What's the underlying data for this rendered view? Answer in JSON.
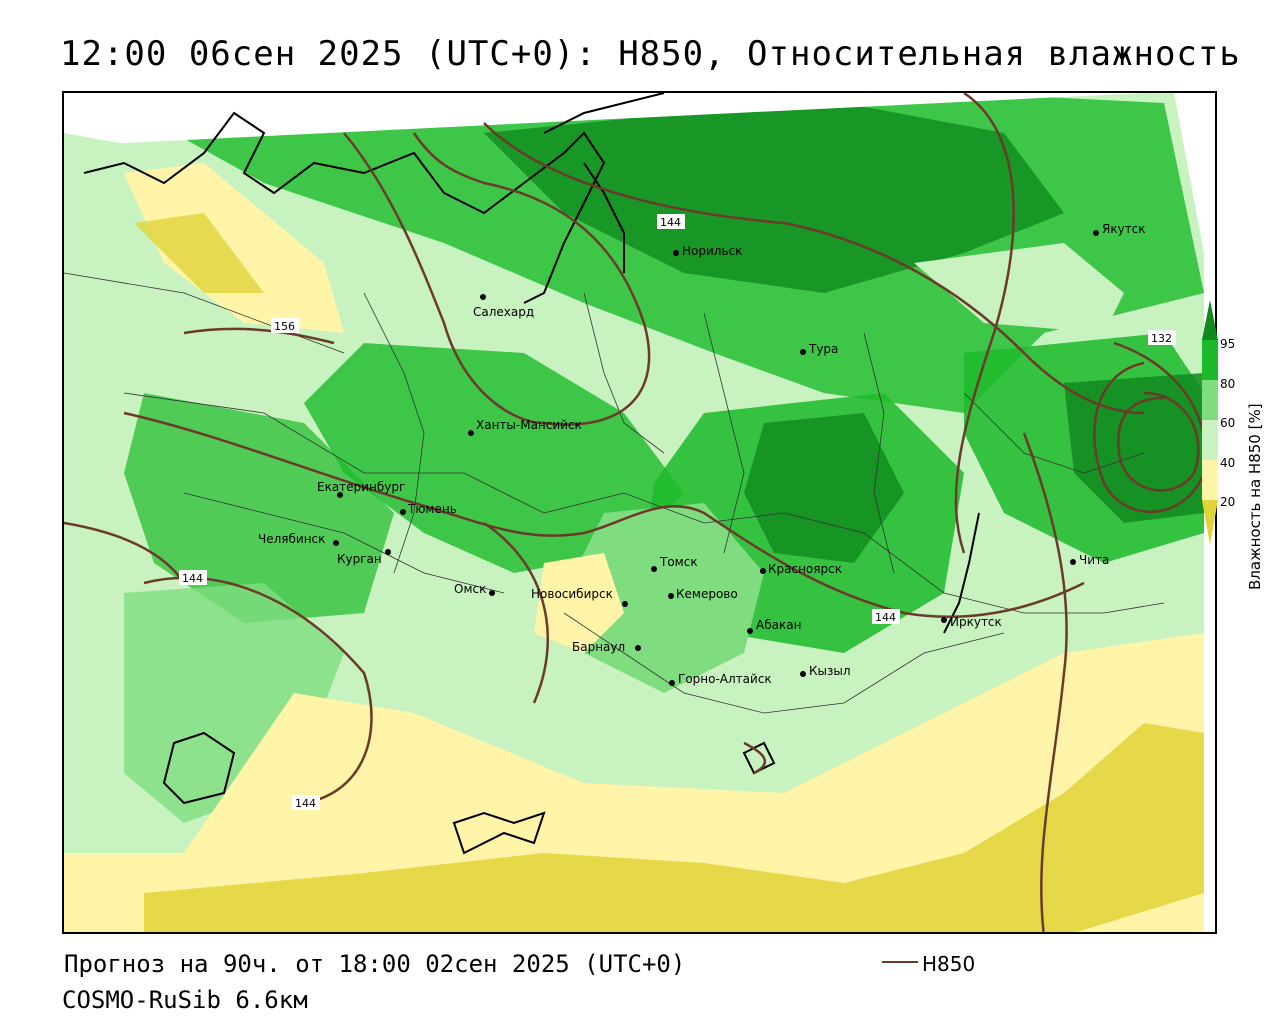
{
  "title": "12:00 06сен 2025 (UTC+0): H850, Относительная влажность",
  "footer": {
    "forecast": "Прогноз на 90ч. от 18:00 02сен 2025 (UTC+0)",
    "model": "COSMO-RuSib 6.6км"
  },
  "legend": {
    "contour_label": "H850",
    "contour_color": "#6b3a2a"
  },
  "colorbar": {
    "title": "Влажность на H850 [%]",
    "ticks": [
      "95",
      "80",
      "60",
      "40",
      "20"
    ],
    "colors": {
      "very_wet": "#0f8a1e",
      "wet": "#1cba2a",
      "moist": "#7fdc7f",
      "light": "#c8f2c0",
      "dry": "#fff4a8",
      "very_dry": "#e0d43a"
    }
  },
  "cities": [
    {
      "name": "Якутск"
    },
    {
      "name": "Норильск"
    },
    {
      "name": "Салехард"
    },
    {
      "name": "Тура"
    },
    {
      "name": "Ханты-Мансийск"
    },
    {
      "name": "Екатеринбург"
    },
    {
      "name": "Тюмень"
    },
    {
      "name": "Челябинск"
    },
    {
      "name": "Курган"
    },
    {
      "name": "Омск"
    },
    {
      "name": "Новосибирск"
    },
    {
      "name": "Томск"
    },
    {
      "name": "Кемерово"
    },
    {
      "name": "Красноярск"
    },
    {
      "name": "Абакан"
    },
    {
      "name": "Барнаул"
    },
    {
      "name": "Горно-Алтайск"
    },
    {
      "name": "Кызыл"
    },
    {
      "name": "Иркутск"
    },
    {
      "name": "Чита"
    }
  ],
  "contour_labels": [
    "144",
    "156",
    "132",
    "144",
    "144",
    "144"
  ]
}
